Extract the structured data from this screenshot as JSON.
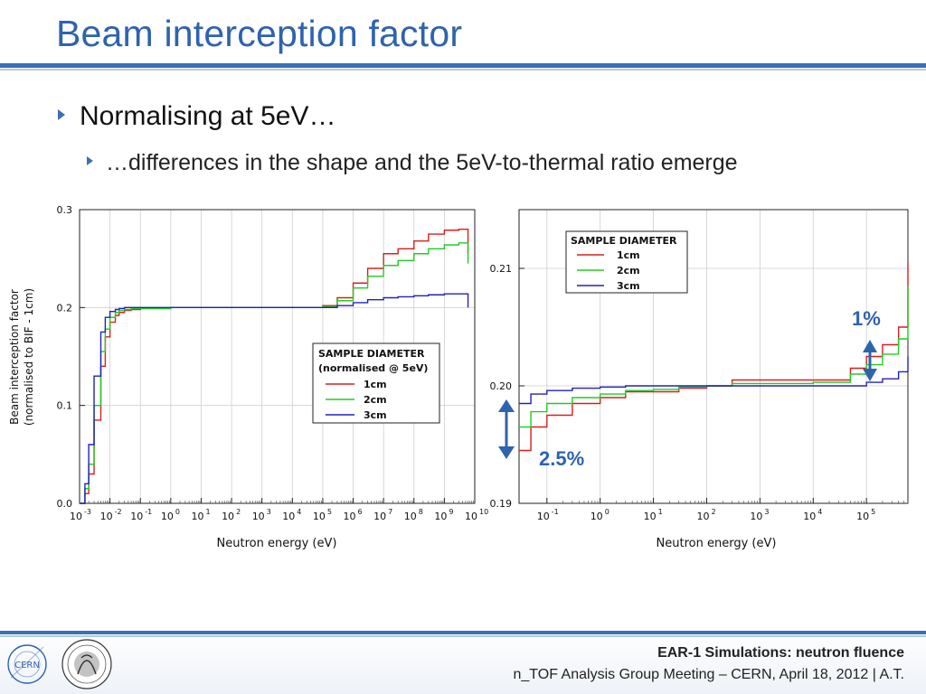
{
  "slide": {
    "title": "Beam interception factor",
    "bullet_1": "Normalising at 5eV…",
    "bullet_2": "…differences in the shape and the 5eV-to-thermal ratio emerge"
  },
  "footer": {
    "title": "EAR-1 Simulations: neutron fluence",
    "subtitle": "n_TOF Analysis Group Meeting – CERN, April 18, 2012 | A.T.",
    "logo_left": "CERN"
  },
  "colors": {
    "accent": "#2e63ad",
    "series_1cm": "#d62020",
    "series_2cm": "#22cc22",
    "series_3cm": "#2222bb"
  },
  "chart_data": [
    {
      "type": "line",
      "title": "",
      "xlabel": "Neutron energy (eV)",
      "ylabel": "Beam interception factor",
      "ylabel2": "(normalised to BIF - 1cm)",
      "xscale": "log",
      "xlim": [
        0.001,
        10000000000
      ],
      "ylim": [
        0.0,
        0.3
      ],
      "x_ticks": [
        "10",
        "10",
        "10",
        "10",
        "10",
        "10",
        "10",
        "10",
        "10",
        "10",
        "10",
        "10",
        "10",
        "10"
      ],
      "x_tick_exponents": [
        "-3",
        "-2",
        "-1",
        "0",
        "1",
        "2",
        "3",
        "4",
        "5",
        "6",
        "7",
        "8",
        "9",
        "10"
      ],
      "y_ticks": [
        "0.0",
        "0.1",
        "0.2",
        "0.3"
      ],
      "grid": true,
      "legend": {
        "title": "SAMPLE DIAMETER",
        "subtitle": "(normalised @ 5eV)",
        "placement": "center-right",
        "entries": [
          "1cm",
          "2cm",
          "3cm"
        ]
      },
      "series": [
        {
          "name": "1cm",
          "x": [
            0.001,
            0.0015,
            0.002,
            0.003,
            0.005,
            0.007,
            0.01,
            0.015,
            0.02,
            0.03,
            0.05,
            0.1,
            1,
            10,
            100,
            1000,
            10000,
            100000,
            300000,
            1000000,
            3000000,
            10000000,
            30000000,
            100000000,
            300000000,
            1000000000,
            3000000000,
            5000000000,
            6000000000
          ],
          "y": [
            0.0,
            0.01,
            0.03,
            0.085,
            0.14,
            0.17,
            0.185,
            0.192,
            0.195,
            0.197,
            0.198,
            0.199,
            0.2,
            0.2,
            0.2,
            0.2,
            0.2,
            0.202,
            0.21,
            0.225,
            0.24,
            0.255,
            0.26,
            0.268,
            0.275,
            0.279,
            0.28,
            0.28,
            0.255
          ]
        },
        {
          "name": "2cm",
          "x": [
            0.001,
            0.0015,
            0.002,
            0.003,
            0.005,
            0.007,
            0.01,
            0.015,
            0.02,
            0.03,
            0.05,
            0.1,
            1,
            10,
            100,
            1000,
            10000,
            100000,
            300000,
            1000000,
            3000000,
            10000000,
            30000000,
            100000000,
            300000000,
            1000000000,
            3000000000,
            5000000000,
            6000000000
          ],
          "y": [
            0.0,
            0.015,
            0.04,
            0.1,
            0.155,
            0.178,
            0.19,
            0.195,
            0.197,
            0.198,
            0.199,
            0.199,
            0.2,
            0.2,
            0.2,
            0.2,
            0.2,
            0.201,
            0.207,
            0.22,
            0.232,
            0.243,
            0.248,
            0.255,
            0.26,
            0.264,
            0.266,
            0.266,
            0.245
          ]
        },
        {
          "name": "3cm",
          "x": [
            0.001,
            0.0015,
            0.002,
            0.003,
            0.005,
            0.007,
            0.01,
            0.015,
            0.02,
            0.03,
            0.05,
            0.1,
            1,
            10,
            100,
            1000,
            10000,
            100000,
            300000,
            1000000,
            3000000,
            10000000,
            30000000,
            100000000,
            300000000,
            1000000000,
            3000000000,
            5000000000,
            6000000000
          ],
          "y": [
            0.0,
            0.02,
            0.06,
            0.13,
            0.175,
            0.19,
            0.196,
            0.198,
            0.199,
            0.2,
            0.2,
            0.2,
            0.2,
            0.2,
            0.2,
            0.2,
            0.2,
            0.2,
            0.202,
            0.205,
            0.208,
            0.21,
            0.211,
            0.212,
            0.213,
            0.214,
            0.214,
            0.214,
            0.2
          ]
        }
      ]
    },
    {
      "type": "line",
      "title": "",
      "xlabel": "Neutron energy (eV)",
      "xscale": "log",
      "xlim": [
        0.03,
        600000
      ],
      "ylim": [
        0.19,
        0.215
      ],
      "x_ticks": [
        "10",
        "10",
        "10",
        "10",
        "10",
        "10",
        "10"
      ],
      "x_tick_exponents": [
        "-1",
        "0",
        "1",
        "2",
        "3",
        "4",
        "5"
      ],
      "y_ticks": [
        "0.19",
        "0.20",
        "0.21"
      ],
      "grid": true,
      "legend": {
        "title": "SAMPLE DIAMETER",
        "placement": "top-center",
        "entries": [
          "1cm",
          "2cm",
          "3cm"
        ]
      },
      "annotations": [
        "2.5%",
        "1%"
      ],
      "series": [
        {
          "name": "1cm",
          "x": [
            0.03,
            0.05,
            0.1,
            0.3,
            1,
            3,
            10,
            30,
            100,
            300,
            1000,
            3000,
            10000,
            30000,
            50000,
            100000,
            200000,
            400000,
            600000
          ],
          "y": [
            0.1945,
            0.1965,
            0.1975,
            0.1985,
            0.199,
            0.1995,
            0.1995,
            0.1998,
            0.2,
            0.2005,
            0.2005,
            0.2005,
            0.2005,
            0.2005,
            0.2015,
            0.2025,
            0.2035,
            0.205,
            0.2105
          ]
        },
        {
          "name": "2cm",
          "x": [
            0.03,
            0.05,
            0.1,
            0.3,
            1,
            3,
            10,
            30,
            100,
            300,
            1000,
            3000,
            10000,
            30000,
            50000,
            100000,
            200000,
            400000,
            600000
          ],
          "y": [
            0.1965,
            0.1978,
            0.1985,
            0.199,
            0.1993,
            0.1996,
            0.1997,
            0.1999,
            0.2,
            0.2002,
            0.2002,
            0.2002,
            0.2003,
            0.2003,
            0.201,
            0.2018,
            0.2027,
            0.204,
            0.2085
          ]
        },
        {
          "name": "3cm",
          "x": [
            0.03,
            0.05,
            0.1,
            0.3,
            1,
            3,
            10,
            30,
            100,
            300,
            1000,
            3000,
            10000,
            30000,
            50000,
            100000,
            200000,
            400000,
            600000
          ],
          "y": [
            0.1985,
            0.1993,
            0.1996,
            0.1998,
            0.1999,
            0.2,
            0.2,
            0.2,
            0.2,
            0.2,
            0.2,
            0.2,
            0.2,
            0.2,
            0.2,
            0.2003,
            0.2006,
            0.2012,
            0.2025
          ]
        }
      ]
    }
  ]
}
